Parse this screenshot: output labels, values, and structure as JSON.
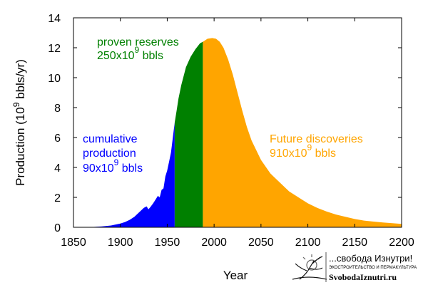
{
  "chart_data": {
    "type": "area",
    "xlabel": "Year",
    "ylabel_parts": {
      "prefix": "Production (10",
      "exp": "9",
      "suffix": " bbls/yr)"
    },
    "xlim": [
      1850,
      2200
    ],
    "ylim": [
      0,
      14
    ],
    "x_ticks": [
      1850,
      1900,
      1950,
      2000,
      2050,
      2100,
      2150,
      2200
    ],
    "y_ticks": [
      0,
      2,
      4,
      6,
      8,
      10,
      12,
      14
    ],
    "grid": false,
    "legend": "none",
    "series": [
      {
        "name": "cumulative production",
        "color": "#0000ff",
        "points": [
          [
            1850,
            0
          ],
          [
            1870,
            0.02
          ],
          [
            1880,
            0.05
          ],
          [
            1890,
            0.12
          ],
          [
            1900,
            0.25
          ],
          [
            1905,
            0.35
          ],
          [
            1910,
            0.5
          ],
          [
            1915,
            0.7
          ],
          [
            1920,
            1.0
          ],
          [
            1925,
            1.3
          ],
          [
            1928,
            1.4
          ],
          [
            1930,
            1.2
          ],
          [
            1932,
            1.35
          ],
          [
            1935,
            1.6
          ],
          [
            1938,
            1.9
          ],
          [
            1940,
            2.1
          ],
          [
            1942,
            2.0
          ],
          [
            1944,
            2.5
          ],
          [
            1946,
            2.6
          ],
          [
            1947,
            3.0
          ],
          [
            1948,
            3.4
          ],
          [
            1950,
            3.8
          ],
          [
            1952,
            4.4
          ],
          [
            1954,
            5.0
          ],
          [
            1956,
            6.0
          ],
          [
            1957,
            6.5
          ],
          [
            1958,
            7.0
          ]
        ]
      },
      {
        "name": "proven reserves",
        "color": "#008000",
        "points": [
          [
            1958,
            7.0
          ],
          [
            1960,
            7.8
          ],
          [
            1962,
            8.6
          ],
          [
            1965,
            9.5
          ],
          [
            1970,
            10.7
          ],
          [
            1975,
            11.4
          ],
          [
            1980,
            11.9
          ],
          [
            1985,
            12.3
          ],
          [
            1988,
            12.4
          ]
        ]
      },
      {
        "name": "Future discoveries",
        "color": "#ffa500",
        "points": [
          [
            1988,
            12.4
          ],
          [
            1993,
            12.6
          ],
          [
            1998,
            12.65
          ],
          [
            2002,
            12.6
          ],
          [
            2006,
            12.4
          ],
          [
            2010,
            12.0
          ],
          [
            2015,
            11.2
          ],
          [
            2020,
            10.2
          ],
          [
            2025,
            9.0
          ],
          [
            2030,
            7.8
          ],
          [
            2035,
            6.7
          ],
          [
            2040,
            5.8
          ],
          [
            2050,
            4.5
          ],
          [
            2060,
            3.6
          ],
          [
            2070,
            3.0
          ],
          [
            2080,
            2.4
          ],
          [
            2090,
            2.0
          ],
          [
            2100,
            1.6
          ],
          [
            2110,
            1.3
          ],
          [
            2120,
            1.05
          ],
          [
            2130,
            0.85
          ],
          [
            2140,
            0.7
          ],
          [
            2150,
            0.55
          ],
          [
            2160,
            0.45
          ],
          [
            2170,
            0.38
          ],
          [
            2180,
            0.32
          ],
          [
            2190,
            0.27
          ],
          [
            2200,
            0.23
          ]
        ]
      }
    ],
    "annotations": [
      {
        "id": "proven",
        "lines": [
          "proven reserves",
          "250x10"
        ],
        "exp": "9",
        "unit": " bbls",
        "color": "#008000"
      },
      {
        "id": "cumulative",
        "lines": [
          "cumulative",
          "production",
          "90x10"
        ],
        "exp": "9",
        "unit": " bbls",
        "color": "#0000ff"
      },
      {
        "id": "future",
        "lines": [
          "Future discoveries",
          "910x10"
        ],
        "exp": "9",
        "unit": " bbls",
        "color": "#ffa500"
      }
    ]
  },
  "watermark": {
    "title": "...свобода Изнутри!",
    "subtitle": "ЭКОСТРОИТЕЛЬСТВО И ПЕРМАКУЛЬТУРА",
    "site": "SvobodaIznutri.ru",
    "logo": "tree-sun-logo-icon"
  }
}
